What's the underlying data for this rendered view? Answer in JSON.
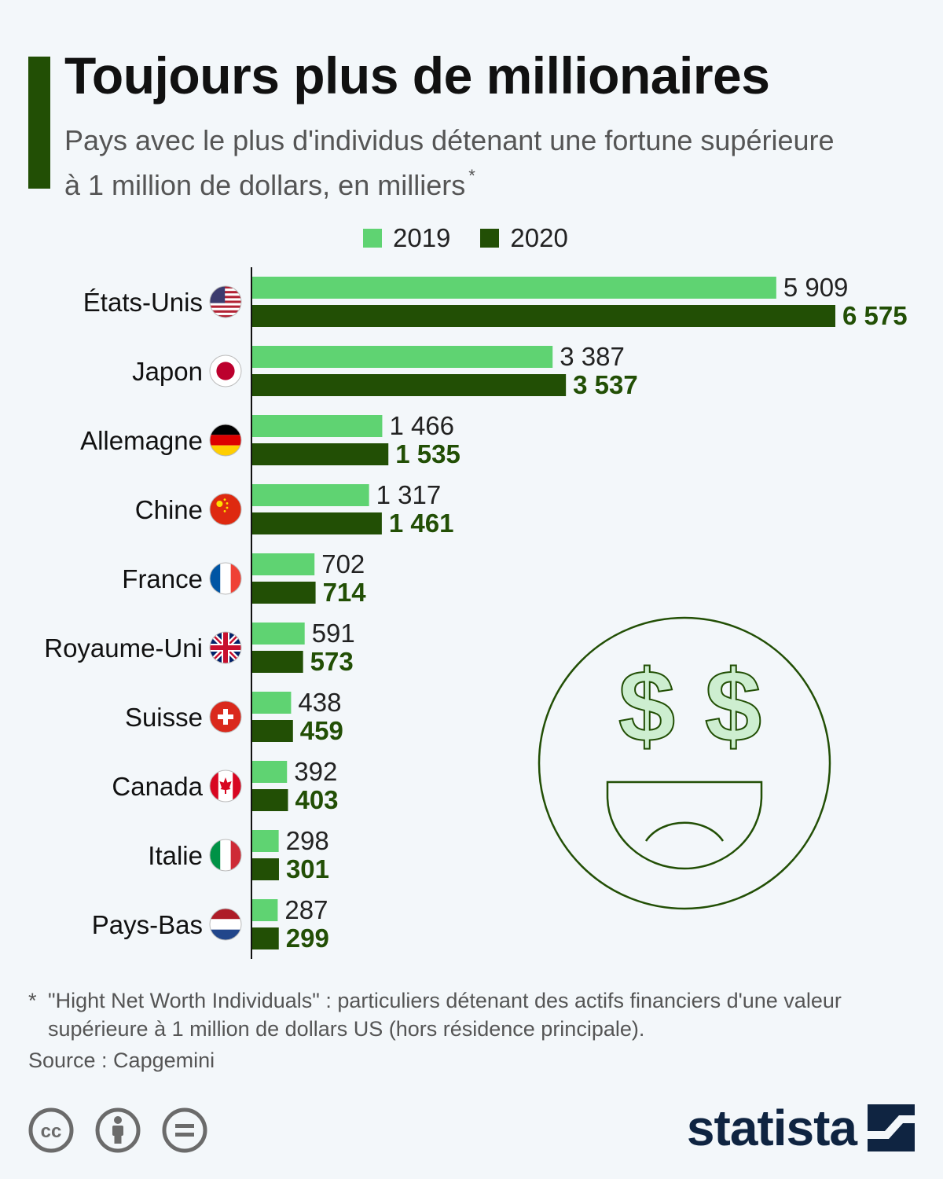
{
  "header": {
    "title": "Toujours plus de millionaires",
    "subtitle": "Pays avec le plus d'individus détenant une fortune supérieure à 1 million de dollars, en milliers",
    "subtitle_marker": "*"
  },
  "legend": {
    "items": [
      {
        "label": "2019",
        "color": "#5fd372"
      },
      {
        "label": "2020",
        "color": "#224f05"
      }
    ]
  },
  "chart_data": {
    "type": "bar",
    "orientation": "horizontal",
    "categories": [
      "États-Unis",
      "Japon",
      "Allemagne",
      "Chine",
      "France",
      "Royaume-Uni",
      "Suisse",
      "Canada",
      "Italie",
      "Pays-Bas"
    ],
    "series": [
      {
        "name": "2019",
        "color": "#5fd372",
        "values": [
          5909,
          3387,
          1466,
          1317,
          702,
          591,
          438,
          392,
          298,
          287
        ],
        "labels": [
          "5 909",
          "3 387",
          "1 466",
          "1 317",
          "702",
          "591",
          "438",
          "392",
          "298",
          "287"
        ]
      },
      {
        "name": "2020",
        "color": "#224f05",
        "values": [
          6575,
          3537,
          1535,
          1461,
          714,
          573,
          459,
          403,
          301,
          299
        ],
        "labels": [
          "6 575",
          "3 537",
          "1 535",
          "1 461",
          "714",
          "573",
          "459",
          "403",
          "301",
          "299"
        ]
      }
    ],
    "xlim": [
      0,
      6575
    ],
    "flag_icons": [
      "us-flag-icon",
      "japan-flag-icon",
      "germany-flag-icon",
      "china-flag-icon",
      "france-flag-icon",
      "uk-flag-icon",
      "switzerland-flag-icon",
      "canada-flag-icon",
      "italy-flag-icon",
      "netherlands-flag-icon"
    ]
  },
  "footnote": {
    "marker": "*",
    "text": "\"Hight Net Worth Individuals\" : particuliers détenant des actifs financiers d'une valeur supérieure à 1 million de dollars US (hors résidence principale)."
  },
  "source": "Source : Capgemini",
  "branding": {
    "logo": "statista",
    "license_icons": [
      "cc-icon",
      "by-icon",
      "nd-icon"
    ]
  },
  "decoration": {
    "icon": "money-eyes-smiley-icon",
    "eye_glyph": "$"
  }
}
